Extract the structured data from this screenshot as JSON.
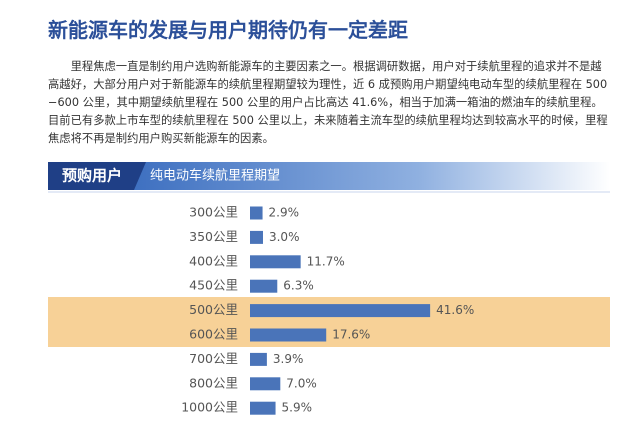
{
  "header": {
    "title": "新能源车的发展与用户期待仍有一定差距"
  },
  "paragraph": "里程焦虑一直是制约用户选购新能源车的主要因素之一。根据调研数据，用户对于续航里程的追求并不是越高越好，大部分用户对于新能源车的续航里程期望较为理性，近 6 成预购用户期望纯电动车型的续航里程在 500 −600 公里，其中期望续航里程在 500 公里的用户占比高达 41.6%，相当于加满一箱油的燃油车的续航里程。目前已有多款上市车型的续航里程在 500 公里以上，未来随着主流车型的续航里程均达到较高水平的时候，里程焦虑将不再是制约用户购买新能源车的因素。",
  "banner": {
    "label": "预购用户",
    "subtitle": "纯电动车续航里程期望"
  },
  "chart_data": {
    "type": "bar",
    "orientation": "horizontal",
    "categories": [
      "300公里",
      "350公里",
      "400公里",
      "450公里",
      "500公里",
      "600公里",
      "700公里",
      "800公里",
      "1000公里"
    ],
    "values": [
      2.9,
      3.0,
      11.7,
      6.3,
      41.6,
      17.6,
      3.9,
      7.0,
      5.9
    ],
    "value_labels": [
      "2.9%",
      "3.0%",
      "11.7%",
      "6.3%",
      "41.6%",
      "17.6%",
      "3.9%",
      "7.0%",
      "5.9%"
    ],
    "color": "#4a74b9"
  }
}
